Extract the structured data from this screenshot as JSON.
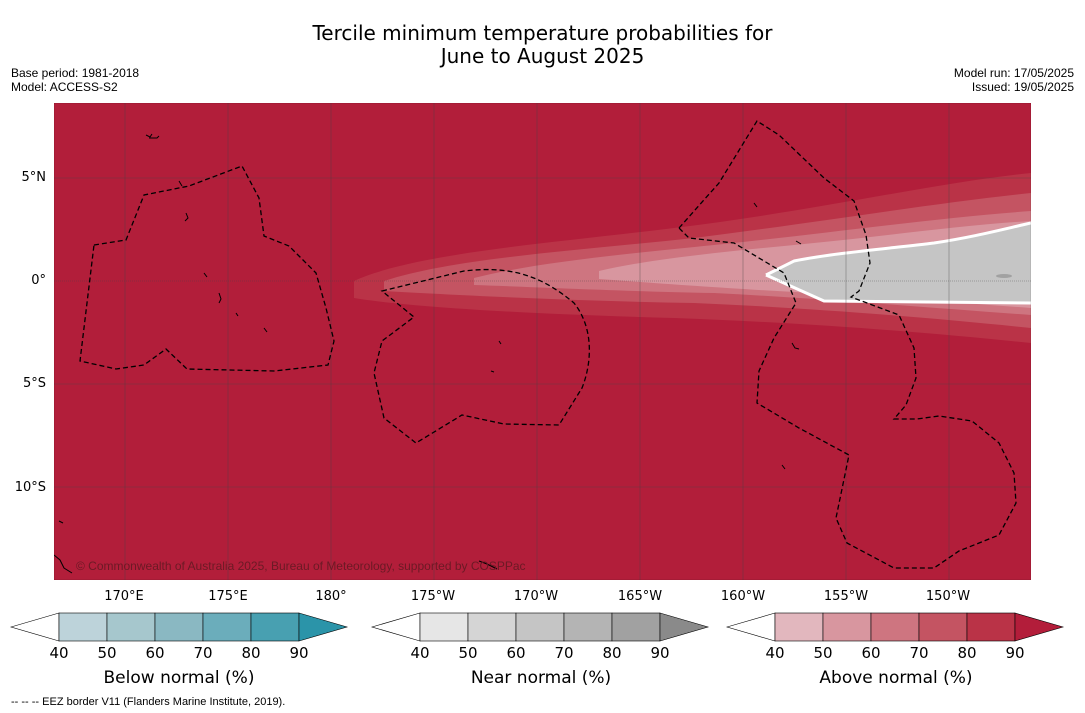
{
  "title_line1": "Tercile minimum temperature probabilities for",
  "title_line2": "June to August 2025",
  "meta_left": [
    "Base period: 1981-2018",
    "Model: ACCESS-S2"
  ],
  "meta_right": [
    "Model run: 17/05/2025",
    "Issued: 19/05/2025"
  ],
  "copyright": "© Commonwealth of Australia 2025, Bureau of Meteorology, supported by COSPPac",
  "footer": "--  --  -- EEZ border V11 (Flanders Marine Institute, 2019).",
  "lat_labels": [
    "5°N",
    "0°",
    "5°S",
    "10°S"
  ],
  "lon_labels": [
    "170°E",
    "175°E",
    "180°",
    "175°W",
    "170°W",
    "165°W",
    "160°W",
    "155°W",
    "150°W"
  ],
  "colorbars": [
    {
      "title": "Below normal (%)",
      "ticks": [
        "40",
        "50",
        "60",
        "70",
        "80",
        "90"
      ],
      "colors": [
        "#ffffff",
        "#bdd3da",
        "#a6c7cd",
        "#8ab8c2",
        "#6badbb",
        "#48a0b1",
        "#2b94a9"
      ]
    },
    {
      "title": "Near normal (%)",
      "ticks": [
        "40",
        "50",
        "60",
        "70",
        "80",
        "90"
      ],
      "colors": [
        "#ffffff",
        "#e6e6e6",
        "#d5d5d5",
        "#c5c5c5",
        "#b4b4b4",
        "#a1a1a1",
        "#8a8a8a"
      ]
    },
    {
      "title": "Above normal (%)",
      "ticks": [
        "40",
        "50",
        "60",
        "70",
        "80",
        "90"
      ],
      "colors": [
        "#ffffff",
        "#e2b7be",
        "#d8969f",
        "#ce7580",
        "#c45462",
        "#ba3347",
        "#b31d3a"
      ]
    }
  ],
  "map_colors": {
    "above_90": "#b21e3a",
    "above_80": "#ba3347",
    "above_70": "#c45462",
    "above_60": "#ce7580",
    "above_50": "#d8969f",
    "near_60": "#c5c5c5",
    "near_80": "#a1a1a1"
  }
}
